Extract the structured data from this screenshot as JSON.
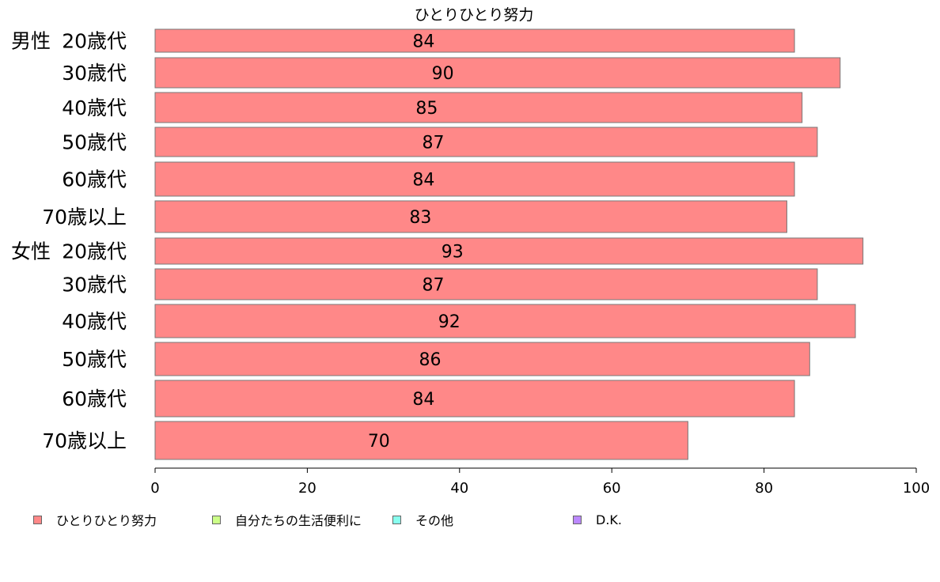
{
  "chart_data": {
    "type": "bar",
    "orientation": "horizontal",
    "title": "ひとりひとり努力",
    "groups": [
      {
        "label": "男性",
        "categories": [
          "20歳代",
          "30歳代",
          "40歳代",
          "50歳代",
          "60歳代",
          "70歳以上"
        ]
      },
      {
        "label": "女性",
        "categories": [
          "20歳代",
          "30歳代",
          "40歳代",
          "50歳代",
          "60歳代",
          "70歳以上"
        ]
      }
    ],
    "series": [
      {
        "name": "ひとりひとり努力",
        "color": "#ff8888",
        "values": [
          84,
          90,
          85,
          87,
          84,
          83,
          93,
          87,
          92,
          86,
          84,
          70
        ]
      }
    ],
    "xlim": [
      0,
      100
    ],
    "xticks": [
      0,
      20,
      40,
      60,
      80,
      100
    ],
    "grid": false,
    "legend_position": "bottom",
    "legend": [
      {
        "label": "ひとりひとり努力",
        "color": "#ff8888"
      },
      {
        "label": "自分たちの生活便利に",
        "color": "#ccff88"
      },
      {
        "label": "その他",
        "color": "#88ffee"
      },
      {
        "label": "D.K.",
        "color": "#bb88ff"
      }
    ]
  }
}
